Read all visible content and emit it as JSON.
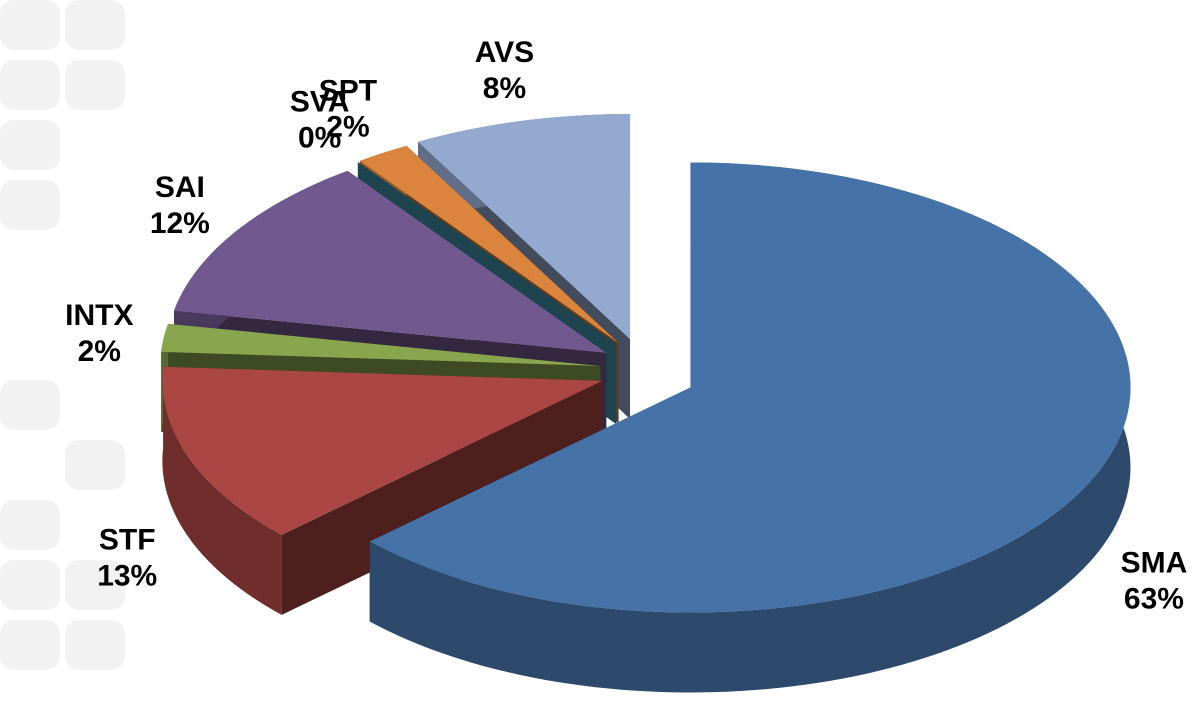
{
  "chart_data": {
    "type": "pie3d",
    "categories": [
      "SMA",
      "STF",
      "INTX",
      "SAI",
      "SVA",
      "SPT",
      "AVS"
    ],
    "values": [
      63,
      13,
      2,
      12,
      0,
      2,
      8
    ],
    "value_labels": [
      "63%",
      "13%",
      "2%",
      "12%",
      "0%",
      "2%",
      "8%"
    ],
    "colors": [
      "#4572a7",
      "#aa4643",
      "#89a54e",
      "#71588f",
      "#4198af",
      "#db843d",
      "#93a9cf"
    ]
  }
}
